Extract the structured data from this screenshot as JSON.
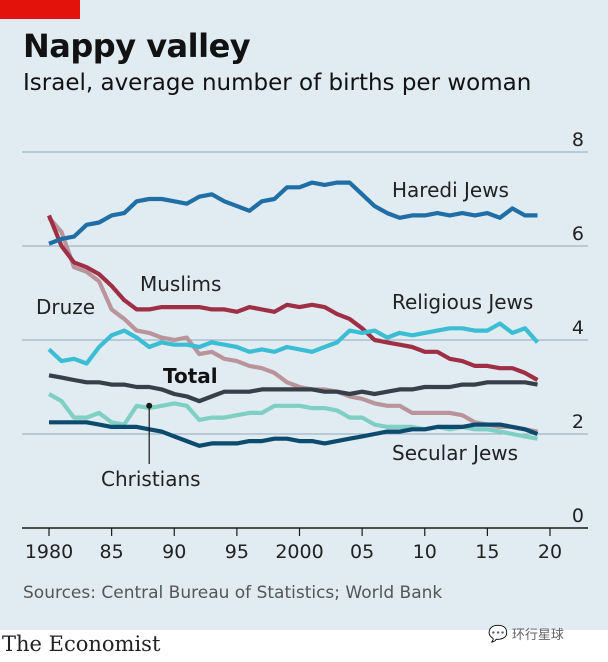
{
  "header": {
    "title": "Nappy valley",
    "subtitle": "Israel, average number of births per woman"
  },
  "footer": {
    "source": "Sources: Central Bureau of Statistics; World Bank",
    "brand": "The Economist",
    "watermark": "环行星球"
  },
  "colors": {
    "background": "#e1ebf2",
    "accent_red": "#e3120b",
    "haredi": "#1f6fa6",
    "muslims": "#9e2f45",
    "druze": "#b9959b",
    "religious": "#3bbdd3",
    "christians": "#7fcfc5",
    "total": "#37404a",
    "secular": "#0c4a6e",
    "grid": "#8fa8b8"
  },
  "chart_data": {
    "type": "line",
    "title": "Nappy valley",
    "subtitle": "Israel, average number of births per woman",
    "xlabel": "",
    "ylabel": "",
    "xlim": [
      1979,
      2021
    ],
    "ylim": [
      0,
      8
    ],
    "y_ticks": [
      0,
      2,
      4,
      6,
      8
    ],
    "y_tick_labels": [
      "0",
      "2",
      "4",
      "6",
      "8"
    ],
    "x_ticks": [
      1980,
      1985,
      1990,
      1995,
      2000,
      2005,
      2010,
      2015,
      2020
    ],
    "x_tick_labels": [
      "1980",
      "85",
      "90",
      "95",
      "2000",
      "05",
      "10",
      "15",
      "20"
    ],
    "grid": true,
    "series": [
      {
        "name": "Haredi Jews",
        "color_key": "haredi",
        "x": [
          1980,
          1981,
          1982,
          1983,
          1984,
          1985,
          1986,
          1987,
          1988,
          1989,
          1990,
          1991,
          1992,
          1993,
          1994,
          1995,
          1996,
          1997,
          1998,
          1999,
          2000,
          2001,
          2002,
          2003,
          2004,
          2005,
          2006,
          2007,
          2008,
          2009,
          2010,
          2011,
          2012,
          2013,
          2014,
          2015,
          2016,
          2017,
          2018,
          2019
        ],
        "values": [
          6.05,
          6.15,
          6.2,
          6.45,
          6.5,
          6.65,
          6.7,
          6.95,
          7.0,
          7.0,
          6.95,
          6.9,
          7.05,
          7.1,
          6.95,
          6.85,
          6.75,
          6.95,
          7.0,
          7.25,
          7.25,
          7.35,
          7.3,
          7.35,
          7.35,
          7.1,
          6.85,
          6.7,
          6.6,
          6.65,
          6.65,
          6.7,
          6.65,
          6.7,
          6.65,
          6.7,
          6.6,
          6.8,
          6.65,
          6.65
        ]
      },
      {
        "name": "Muslims",
        "color_key": "muslims",
        "x": [
          1980,
          1981,
          1982,
          1983,
          1984,
          1985,
          1986,
          1987,
          1988,
          1989,
          1990,
          1991,
          1992,
          1993,
          1994,
          1995,
          1996,
          1997,
          1998,
          1999,
          2000,
          2001,
          2002,
          2003,
          2004,
          2005,
          2006,
          2007,
          2008,
          2009,
          2010,
          2011,
          2012,
          2013,
          2014,
          2015,
          2016,
          2017,
          2018,
          2019
        ],
        "values": [
          6.65,
          6.0,
          5.65,
          5.55,
          5.4,
          5.15,
          4.85,
          4.65,
          4.65,
          4.7,
          4.7,
          4.7,
          4.7,
          4.65,
          4.65,
          4.6,
          4.7,
          4.65,
          4.6,
          4.75,
          4.7,
          4.75,
          4.7,
          4.55,
          4.45,
          4.25,
          4.0,
          3.95,
          3.9,
          3.85,
          3.75,
          3.75,
          3.6,
          3.55,
          3.45,
          3.45,
          3.4,
          3.4,
          3.3,
          3.15
        ]
      },
      {
        "name": "Druze",
        "color_key": "druze",
        "x": [
          1980,
          1981,
          1982,
          1983,
          1984,
          1985,
          1986,
          1987,
          1988,
          1989,
          1990,
          1991,
          1992,
          1993,
          1994,
          1995,
          1996,
          1997,
          1998,
          1999,
          2000,
          2001,
          2002,
          2003,
          2004,
          2005,
          2006,
          2007,
          2008,
          2009,
          2010,
          2011,
          2012,
          2013,
          2014,
          2015,
          2016,
          2017,
          2018,
          2019
        ],
        "values": [
          6.6,
          6.3,
          5.55,
          5.45,
          5.25,
          4.65,
          4.45,
          4.2,
          4.15,
          4.05,
          4.0,
          4.05,
          3.7,
          3.75,
          3.6,
          3.55,
          3.45,
          3.4,
          3.3,
          3.1,
          3.0,
          2.95,
          2.95,
          2.9,
          2.8,
          2.75,
          2.65,
          2.6,
          2.6,
          2.45,
          2.45,
          2.45,
          2.45,
          2.4,
          2.25,
          2.2,
          2.15,
          2.15,
          2.1,
          2.05
        ]
      },
      {
        "name": "Religious Jews",
        "color_key": "religious",
        "x": [
          1980,
          1981,
          1982,
          1983,
          1984,
          1985,
          1986,
          1987,
          1988,
          1989,
          1990,
          1991,
          1992,
          1993,
          1994,
          1995,
          1996,
          1997,
          1998,
          1999,
          2000,
          2001,
          2002,
          2003,
          2004,
          2005,
          2006,
          2007,
          2008,
          2009,
          2010,
          2011,
          2012,
          2013,
          2014,
          2015,
          2016,
          2017,
          2018,
          2019
        ],
        "values": [
          3.8,
          3.55,
          3.6,
          3.5,
          3.85,
          4.1,
          4.2,
          4.05,
          3.85,
          3.95,
          3.9,
          3.9,
          3.85,
          3.95,
          3.9,
          3.85,
          3.75,
          3.8,
          3.75,
          3.85,
          3.8,
          3.75,
          3.85,
          3.95,
          4.2,
          4.15,
          4.2,
          4.05,
          4.15,
          4.1,
          4.15,
          4.2,
          4.25,
          4.25,
          4.2,
          4.2,
          4.35,
          4.15,
          4.25,
          3.95
        ]
      },
      {
        "name": "Christians",
        "color_key": "christians",
        "x": [
          1980,
          1981,
          1982,
          1983,
          1984,
          1985,
          1986,
          1987,
          1988,
          1989,
          1990,
          1991,
          1992,
          1993,
          1994,
          1995,
          1996,
          1997,
          1998,
          1999,
          2000,
          2001,
          2002,
          2003,
          2004,
          2005,
          2006,
          2007,
          2008,
          2009,
          2010,
          2011,
          2012,
          2013,
          2014,
          2015,
          2016,
          2017,
          2018,
          2019
        ],
        "values": [
          2.85,
          2.7,
          2.35,
          2.35,
          2.45,
          2.25,
          2.2,
          2.6,
          2.55,
          2.6,
          2.65,
          2.6,
          2.3,
          2.35,
          2.35,
          2.4,
          2.45,
          2.45,
          2.6,
          2.6,
          2.6,
          2.55,
          2.55,
          2.5,
          2.35,
          2.35,
          2.2,
          2.15,
          2.15,
          2.15,
          2.1,
          2.15,
          2.1,
          2.15,
          2.1,
          2.1,
          2.05,
          2.0,
          1.95,
          1.9
        ]
      },
      {
        "name": "Total",
        "color_key": "total",
        "x": [
          1980,
          1981,
          1982,
          1983,
          1984,
          1985,
          1986,
          1987,
          1988,
          1989,
          1990,
          1991,
          1992,
          1993,
          1994,
          1995,
          1996,
          1997,
          1998,
          1999,
          2000,
          2001,
          2002,
          2003,
          2004,
          2005,
          2006,
          2007,
          2008,
          2009,
          2010,
          2011,
          2012,
          2013,
          2014,
          2015,
          2016,
          2017,
          2018,
          2019
        ],
        "values": [
          3.25,
          3.2,
          3.15,
          3.1,
          3.1,
          3.05,
          3.05,
          3.0,
          3.0,
          2.95,
          2.85,
          2.8,
          2.7,
          2.8,
          2.9,
          2.9,
          2.9,
          2.95,
          2.95,
          2.95,
          2.95,
          2.95,
          2.9,
          2.9,
          2.85,
          2.9,
          2.85,
          2.9,
          2.95,
          2.95,
          3.0,
          3.0,
          3.0,
          3.05,
          3.05,
          3.1,
          3.1,
          3.1,
          3.1,
          3.05
        ]
      },
      {
        "name": "Secular Jews",
        "color_key": "secular",
        "x": [
          1980,
          1981,
          1982,
          1983,
          1984,
          1985,
          1986,
          1987,
          1988,
          1989,
          1990,
          1991,
          1992,
          1993,
          1994,
          1995,
          1996,
          1997,
          1998,
          1999,
          2000,
          2001,
          2002,
          2003,
          2004,
          2005,
          2006,
          2007,
          2008,
          2009,
          2010,
          2011,
          2012,
          2013,
          2014,
          2015,
          2016,
          2017,
          2018,
          2019
        ],
        "values": [
          2.25,
          2.25,
          2.25,
          2.25,
          2.2,
          2.15,
          2.15,
          2.15,
          2.1,
          2.05,
          1.95,
          1.85,
          1.75,
          1.8,
          1.8,
          1.8,
          1.85,
          1.85,
          1.9,
          1.9,
          1.85,
          1.85,
          1.8,
          1.85,
          1.9,
          1.95,
          2.0,
          2.05,
          2.05,
          2.1,
          2.1,
          2.15,
          2.15,
          2.15,
          2.2,
          2.2,
          2.2,
          2.15,
          2.1,
          2.0
        ]
      }
    ],
    "labels": [
      {
        "text": "Haredi Jews",
        "series": "Haredi Jews",
        "bold": false
      },
      {
        "text": "Muslims",
        "series": "Muslims",
        "bold": false
      },
      {
        "text": "Druze",
        "series": "Druze",
        "bold": false
      },
      {
        "text": "Religious Jews",
        "series": "Religious Jews",
        "bold": false
      },
      {
        "text": "Total",
        "series": "Total",
        "bold": true
      },
      {
        "text": "Christians",
        "series": "Christians",
        "bold": false,
        "pointer_x": 1988,
        "pointer_y": 2.6
      },
      {
        "text": "Secular Jews",
        "series": "Secular Jews",
        "bold": false
      }
    ]
  }
}
